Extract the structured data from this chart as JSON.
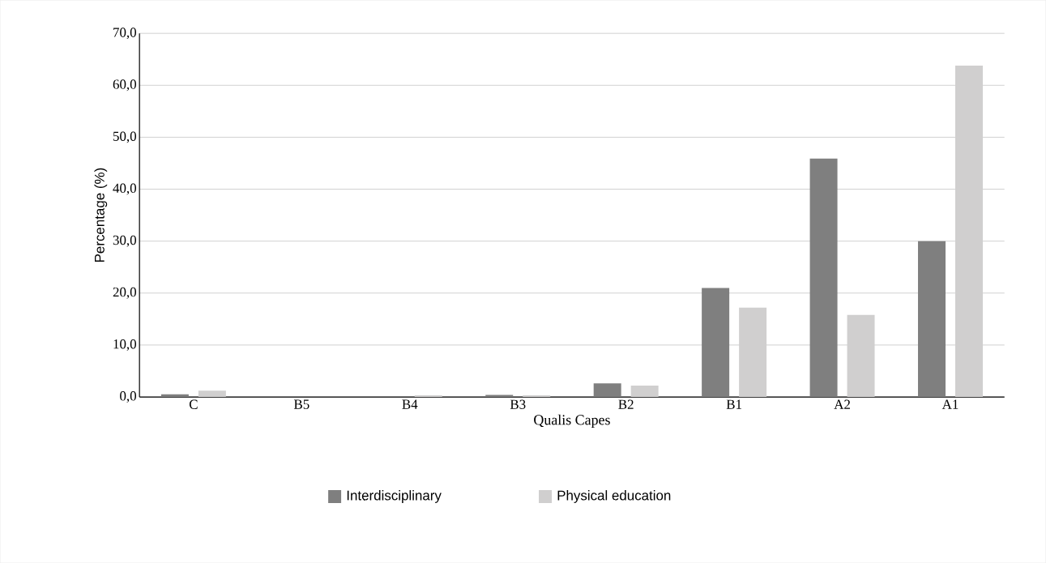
{
  "chart_data": {
    "type": "bar",
    "xlabel": "Qualis Capes",
    "ylabel": "Percentage (%)",
    "categories": [
      "C",
      "B5",
      "B4",
      "B3",
      "B2",
      "B1",
      "A2",
      "A1"
    ],
    "series": [
      {
        "name": "Interdisciplinary",
        "color": "#7f7f7f",
        "values": [
          0.5,
          0,
          0,
          0.4,
          2.6,
          21.0,
          45.9,
          30.0
        ]
      },
      {
        "name": "Physical education",
        "color": "#d0cfcf",
        "values": [
          1.2,
          0,
          0.3,
          0.3,
          2.2,
          17.2,
          15.8,
          63.8
        ]
      }
    ],
    "ylim": [
      0,
      70
    ],
    "yticks": [
      {
        "value": 0,
        "label": "0,0"
      },
      {
        "value": 10,
        "label": "10,0"
      },
      {
        "value": 20,
        "label": "20,0"
      },
      {
        "value": 30,
        "label": "30,0"
      },
      {
        "value": 40,
        "label": "40,0"
      },
      {
        "value": 50,
        "label": "50,0"
      },
      {
        "value": 60,
        "label": "60,0"
      },
      {
        "value": 70,
        "label": "70,0"
      }
    ],
    "grid": "y",
    "legend": "bottom"
  }
}
